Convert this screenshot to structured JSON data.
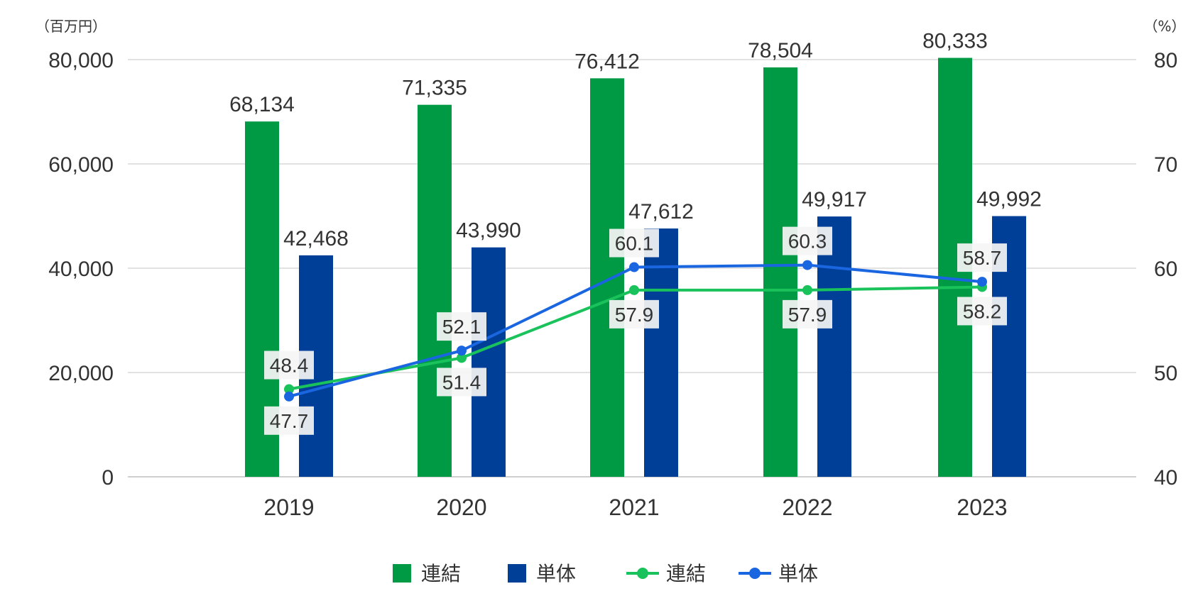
{
  "chart_data": {
    "type": "bar",
    "categories": [
      "2019",
      "2020",
      "2021",
      "2022",
      "2023"
    ],
    "left_unit": "（百万円）",
    "right_unit": "（%）",
    "ylim": [
      0,
      80000
    ],
    "yticks": [
      "0",
      "20,000",
      "40,000",
      "60,000",
      "80,000"
    ],
    "y2lim": [
      40,
      80
    ],
    "y2ticks": [
      "40",
      "50",
      "60",
      "70",
      "80"
    ],
    "grid": true,
    "legend_position": "bottom",
    "bar_series": [
      {
        "name": "連結",
        "color": "#009a44",
        "values": [
          68134,
          71335,
          76412,
          78504,
          80333
        ],
        "labels": [
          "68,134",
          "71,335",
          "76,412",
          "78,504",
          "80,333"
        ]
      },
      {
        "name": "単体",
        "color": "#003f98",
        "values": [
          42468,
          43990,
          47612,
          49917,
          49992
        ],
        "labels": [
          "42,468",
          "43,990",
          "47,612",
          "49,917",
          "49,992"
        ]
      }
    ],
    "line_series": [
      {
        "name": "連結",
        "color": "#19c25a",
        "values": [
          48.4,
          51.4,
          57.9,
          57.9,
          58.2
        ],
        "labels": [
          "48.4",
          "51.4",
          "57.9",
          "57.9",
          "58.2"
        ]
      },
      {
        "name": "単体",
        "color": "#1a66e0",
        "values": [
          47.7,
          52.1,
          60.1,
          60.3,
          58.7
        ],
        "labels": [
          "47.7",
          "52.1",
          "60.1",
          "60.3",
          "58.7"
        ]
      }
    ]
  }
}
